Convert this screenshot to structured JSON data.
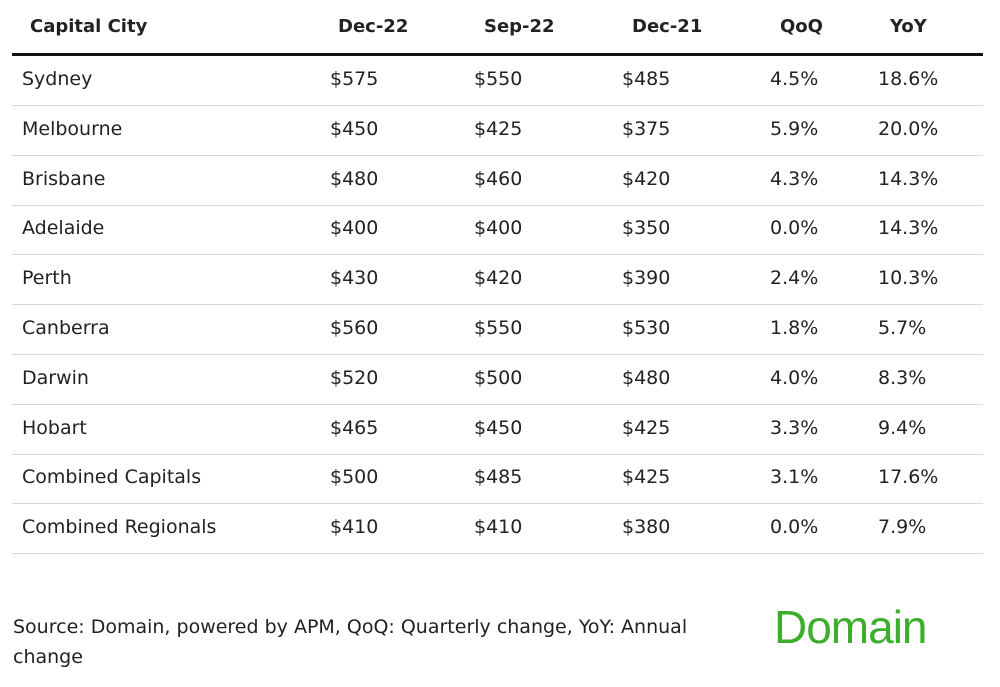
{
  "table": {
    "header": [
      "Capital City",
      "Dec-22",
      "Sep-22",
      "Dec-21",
      "QoQ",
      "YoY"
    ],
    "rows": [
      [
        "Sydney",
        "$575",
        "$550",
        "$485",
        "4.5%",
        "18.6%"
      ],
      [
        "Melbourne",
        "$450",
        "$425",
        "$375",
        "5.9%",
        "20.0%"
      ],
      [
        "Brisbane",
        "$480",
        "$460",
        "$420",
        "4.3%",
        "14.3%"
      ],
      [
        "Adelaide",
        "$400",
        "$400",
        "$350",
        "0.0%",
        "14.3%"
      ],
      [
        "Perth",
        "$430",
        "$420",
        "$390",
        "2.4%",
        "10.3%"
      ],
      [
        "Canberra",
        "$560",
        "$550",
        "$530",
        "1.8%",
        "5.7%"
      ],
      [
        "Darwin",
        "$520",
        "$500",
        "$480",
        "4.0%",
        "8.3%"
      ],
      [
        "Hobart",
        "$465",
        "$450",
        "$425",
        "3.3%",
        "9.4%"
      ],
      [
        "Combined Capitals",
        "$500",
        "$485",
        "$425",
        "3.1%",
        "17.6%"
      ],
      [
        "Combined Regionals",
        "$410",
        "$410",
        "$380",
        "0.0%",
        "7.9%"
      ]
    ]
  },
  "source": "Source: Domain, powered by APM, QoQ: Quarterly change, YoY: Annual change",
  "logo": "Domain"
}
